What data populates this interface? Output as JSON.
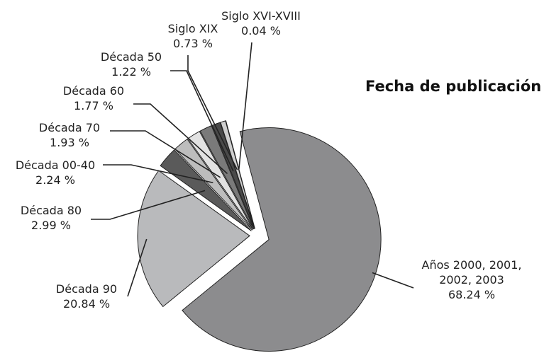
{
  "chart_data": {
    "type": "pie",
    "title": "Fecha de publicación",
    "categories": [
      "Años 2000, 2001, 2002, 2003",
      "Década 90",
      "Década 80",
      "Década 00-40",
      "Década 70",
      "Década 60",
      "Década 50",
      "Siglo XIX",
      "Siglo XVI-XVIII"
    ],
    "values": [
      68.24,
      20.84,
      2.99,
      2.24,
      1.93,
      1.77,
      1.22,
      0.73,
      0.04
    ],
    "value_labels": [
      "68.24 %",
      "20.84 %",
      "2.99 %",
      "2.24 %",
      "1.93 %",
      "1.77 %",
      "1.22 %",
      "0.73 %",
      "0.04 %"
    ],
    "colors": [
      "#8c8c8e",
      "#b9babc",
      "#5a5a5a",
      "#bdbdbd",
      "#e2e2e2",
      "#7a7a7a",
      "#4a4a4a",
      "#cfcfcf",
      "#eeeeee"
    ]
  }
}
